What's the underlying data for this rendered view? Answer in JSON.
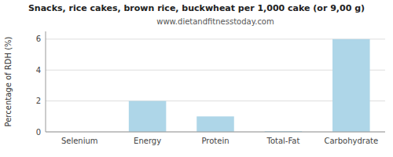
{
  "chart_data": {
    "type": "bar",
    "title": "Snacks, rice cakes, brown rice, buckwheat per 1,000 cake (or 9,00 g)",
    "subtitle": "www.dietandfitnesstoday.com",
    "categories": [
      "Selenium",
      "Energy",
      "Protein",
      "Total-Fat",
      "Carbohydrate"
    ],
    "values": [
      0.0,
      2.0,
      1.0,
      0.05,
      6.0
    ],
    "color": "#aed6e8",
    "ylabel": "Percentage of RDH (%)",
    "ylim": [
      0,
      6.5
    ],
    "yticks": [
      0,
      2,
      4,
      6
    ],
    "grid": true
  }
}
